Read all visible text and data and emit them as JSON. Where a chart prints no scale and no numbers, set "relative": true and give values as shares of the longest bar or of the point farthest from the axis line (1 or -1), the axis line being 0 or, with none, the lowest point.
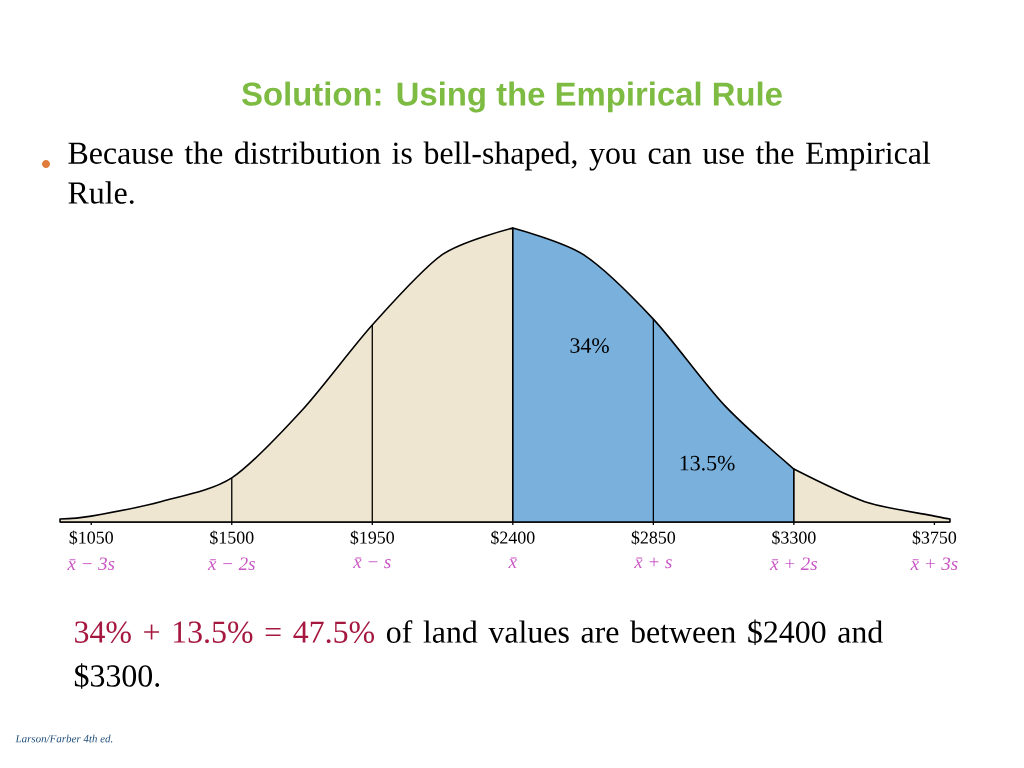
{
  "chart_data": {
    "type": "area",
    "title": "Solution: Using the Empirical Rule",
    "subtitle": "Because the distribution is bell-shaped, you can use the Empirical Rule.",
    "relative": true,
    "series": [
      {
        "color": "#efe6d2",
        "x": [
          950,
          1050,
          1275,
          1500,
          1725,
          1950,
          2175,
          2400
        ],
        "values": [
          0.01,
          0.02,
          0.07,
          0.15,
          0.38,
          0.67,
          0.91,
          1
        ]
      },
      {
        "color": "#7ab0dc",
        "x": [
          2400,
          2625,
          2850,
          3075,
          3300
        ],
        "values": [
          1,
          0.91,
          0.69,
          0.4,
          0.18
        ]
      },
      {
        "color": "#efe6d2",
        "x": [
          3300,
          3525,
          3750,
          3800
        ],
        "values": [
          0.18,
          0.07,
          0.02,
          0.01
        ]
      }
    ],
    "xlim": [
      950,
      3800
    ],
    "xticks": [
      {
        "value": 1050,
        "label": "$1050"
      },
      {
        "value": 1500,
        "label": "$1500"
      },
      {
        "value": 1950,
        "label": "$1950"
      },
      {
        "value": 2400,
        "label": "$2400"
      },
      {
        "value": 2850,
        "label": "$2850"
      },
      {
        "value": 3300,
        "label": "$3300"
      },
      {
        "value": 3750,
        "label": "$3750"
      }
    ],
    "ref_lines": [
      {
        "axis": "x",
        "value": 1500,
        "color": "#000000"
      },
      {
        "axis": "x",
        "value": 1950,
        "color": "#000000"
      },
      {
        "axis": "x",
        "value": 2850,
        "color": "#000000"
      }
    ],
    "annotations": [
      "34%",
      "13.5%",
      "x̄ − 3s",
      "x̄ − 2s",
      "x̄ − s",
      "x̄",
      "x̄ + s",
      "x̄ + 2s",
      "x̄ + 3s",
      "34% + 13.5% = 47.5%",
      "of land values are between $2400 and $3300.",
      "Larson/Farber 4th ed."
    ]
  }
}
